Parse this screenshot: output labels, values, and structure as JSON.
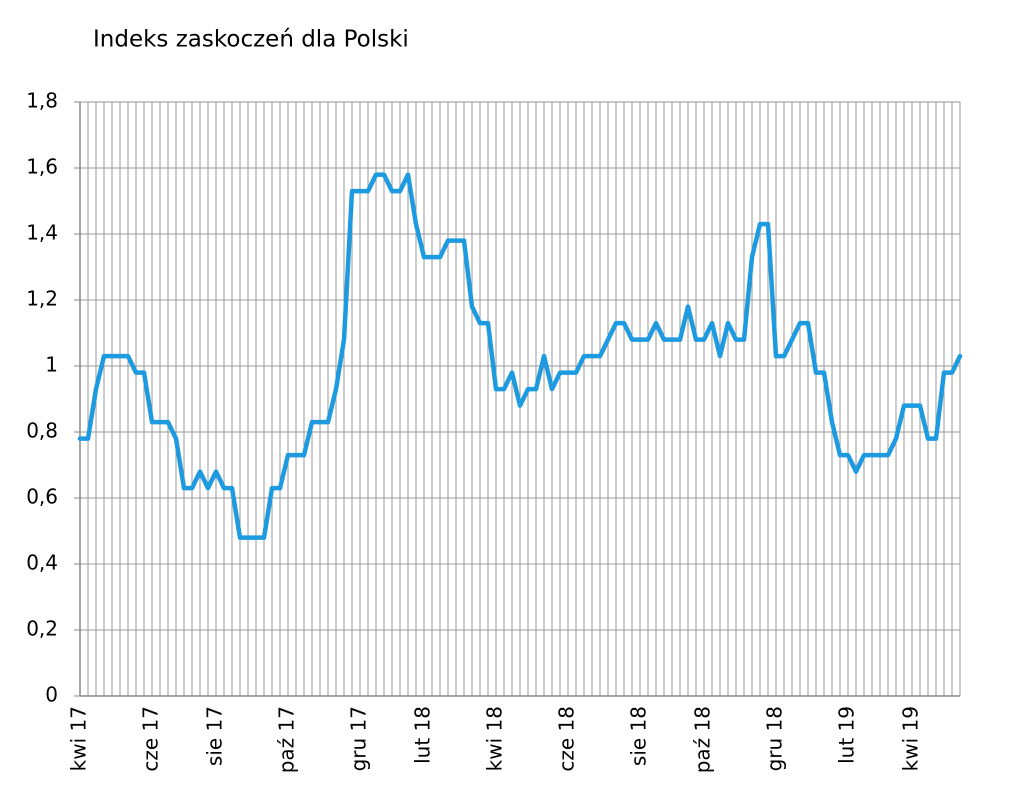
{
  "chart_data": {
    "type": "line",
    "title": "Indeks zaskoczeń dla Polski",
    "categories": [
      "kwi 17",
      null,
      null,
      null,
      null,
      null,
      null,
      null,
      null,
      "cze 17",
      null,
      null,
      null,
      null,
      null,
      null,
      null,
      "sie 17",
      null,
      null,
      null,
      null,
      null,
      null,
      null,
      null,
      "paź 17",
      null,
      null,
      null,
      null,
      null,
      null,
      null,
      null,
      "gru 17",
      null,
      null,
      null,
      null,
      null,
      null,
      null,
      "lut 18",
      null,
      null,
      null,
      null,
      null,
      null,
      null,
      null,
      "kwi 18",
      null,
      null,
      null,
      null,
      null,
      null,
      null,
      null,
      "cze 18",
      null,
      null,
      null,
      null,
      null,
      null,
      null,
      null,
      "sie 18",
      null,
      null,
      null,
      null,
      null,
      null,
      null,
      "paź 18",
      null,
      null,
      null,
      null,
      null,
      null,
      null,
      null,
      "gru 18",
      null,
      null,
      null,
      null,
      null,
      null,
      null,
      null,
      "lut 19",
      null,
      null,
      null,
      null,
      null,
      null,
      null,
      "kwi 19",
      null,
      null,
      null,
      null,
      null,
      null
    ],
    "series": [
      {
        "name": "Indeks zaskoczeń",
        "color": "#1e9be0",
        "values": [
          0.78,
          0.78,
          0.93,
          1.03,
          1.03,
          1.03,
          1.03,
          0.98,
          0.98,
          0.83,
          0.83,
          0.83,
          0.78,
          0.63,
          0.63,
          0.68,
          0.63,
          0.68,
          0.63,
          0.63,
          0.48,
          0.48,
          0.48,
          0.48,
          0.63,
          0.63,
          0.73,
          0.73,
          0.73,
          0.83,
          0.83,
          0.83,
          0.93,
          1.08,
          1.53,
          1.53,
          1.53,
          1.58,
          1.58,
          1.53,
          1.53,
          1.58,
          1.43,
          1.33,
          1.33,
          1.33,
          1.38,
          1.38,
          1.38,
          1.18,
          1.13,
          1.13,
          0.93,
          0.93,
          0.98,
          0.88,
          0.93,
          0.93,
          1.03,
          0.93,
          0.98,
          0.98,
          0.98,
          1.03,
          1.03,
          1.03,
          1.08,
          1.13,
          1.13,
          1.08,
          1.08,
          1.08,
          1.13,
          1.08,
          1.08,
          1.08,
          1.18,
          1.08,
          1.08,
          1.13,
          1.03,
          1.13,
          1.08,
          1.08,
          1.33,
          1.43,
          1.43,
          1.03,
          1.03,
          1.08,
          1.13,
          1.13,
          0.98,
          0.98,
          0.83,
          0.73,
          0.73,
          0.68,
          0.73,
          0.73,
          0.73,
          0.73,
          0.78,
          0.88,
          0.88,
          0.88,
          0.78,
          0.78,
          0.98,
          0.98,
          1.03
        ]
      }
    ],
    "ylim": [
      0,
      1.8
    ],
    "yticks": [
      0,
      {
        "value": 0.2,
        "label": "0,2"
      },
      {
        "value": 0.4,
        "label": "0,4"
      },
      {
        "value": 0.6,
        "label": "0,6"
      },
      {
        "value": 0.8,
        "label": "0,8"
      },
      1,
      {
        "value": 1.2,
        "label": "1,2"
      },
      {
        "value": 1.4,
        "label": "1,4"
      },
      {
        "value": 1.6,
        "label": "1,6"
      },
      {
        "value": 1.8,
        "label": "1,8"
      }
    ],
    "grid": true
  }
}
